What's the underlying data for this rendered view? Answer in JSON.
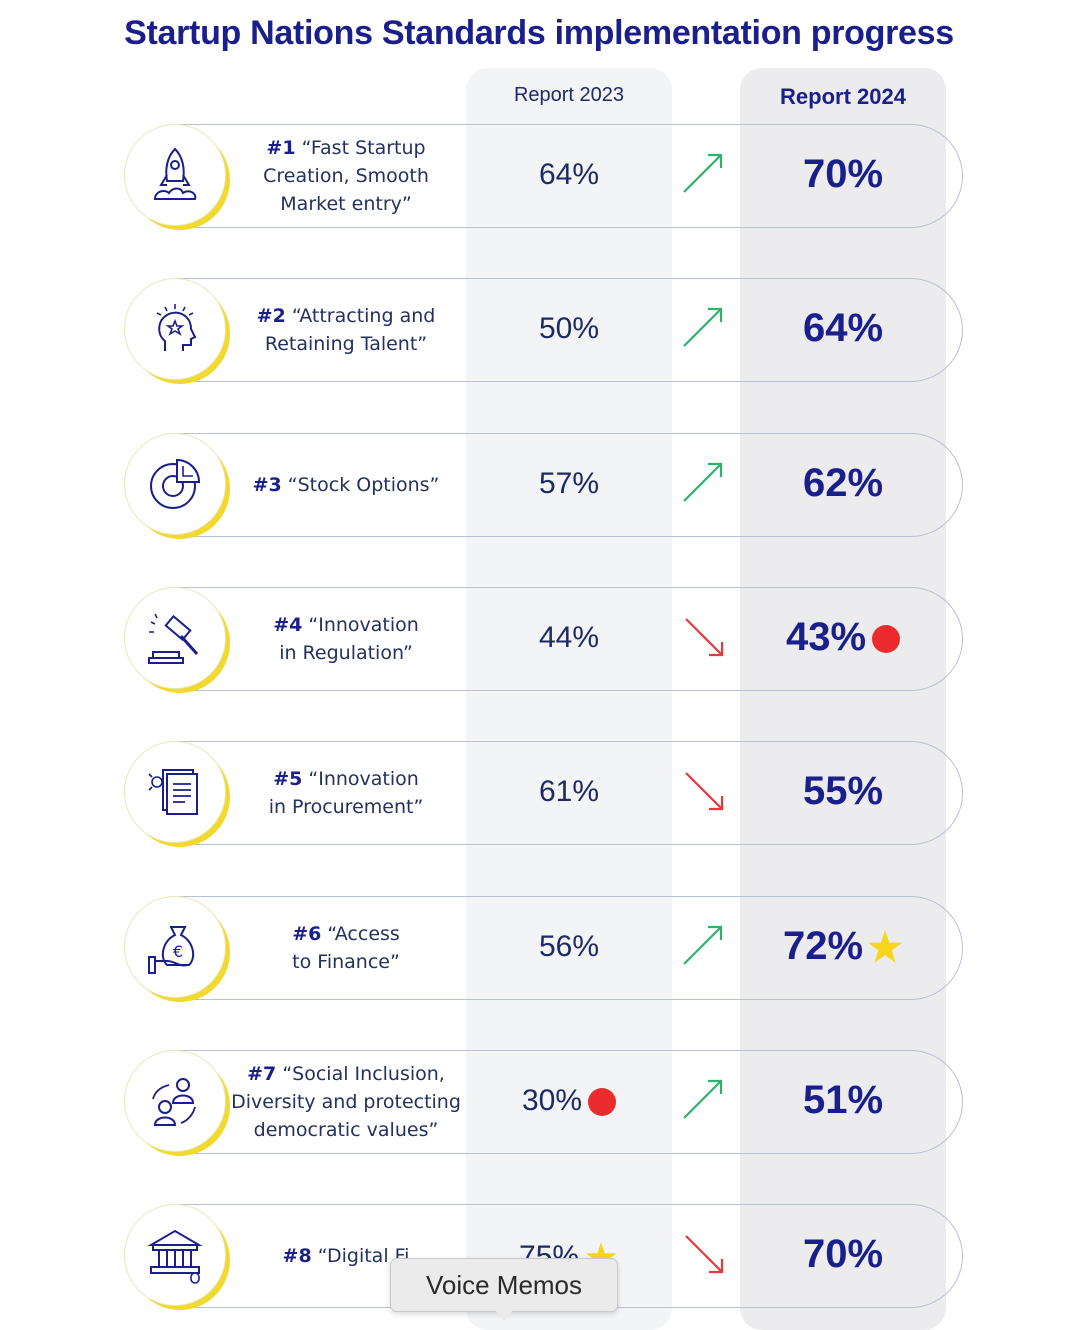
{
  "title": "Startup Nations Standards implementation progress",
  "columns": {
    "y2023": "Report 2023",
    "y2024": "Report 2024"
  },
  "colors": {
    "up": "#2db36b",
    "down": "#e5393b",
    "dot": "#ec2c2c",
    "star": "#f7d51d",
    "brand": "#1a1f8c",
    "circle_accent": "#f2d92e"
  },
  "rows": [
    {
      "num": "#1",
      "line1": "“Fast Startup",
      "line2": "Creation, Smooth",
      "line3": "Market entry”",
      "v2023": "64%",
      "v2024": "70%",
      "trend": "up",
      "icon": "rocket-icon"
    },
    {
      "num": "#2",
      "line1": "“Attracting and",
      "line2": "Retaining Talent”",
      "line3": "",
      "v2023": "50%",
      "v2024": "64%",
      "trend": "up",
      "icon": "head-star-icon"
    },
    {
      "num": "#3",
      "line1": "“Stock Options”",
      "line2": "",
      "line3": "",
      "v2023": "57%",
      "v2024": "62%",
      "trend": "up",
      "icon": "pie-chart-icon"
    },
    {
      "num": "#4",
      "line1": "“Innovation",
      "line2": "in Regulation”",
      "line3": "",
      "v2023": "44%",
      "v2024": "43%",
      "trend": "down",
      "icon": "gavel-icon"
    },
    {
      "num": "#5",
      "line1": "“Innovation",
      "line2": "in Procurement”",
      "line3": "",
      "v2023": "61%",
      "v2024": "55%",
      "trend": "down",
      "icon": "document-icon"
    },
    {
      "num": "#6",
      "line1": "“Access",
      "line2": "to Finance”",
      "line3": "",
      "v2023": "56%",
      "v2024": "72%",
      "trend": "up",
      "icon": "money-bag-icon"
    },
    {
      "num": "#7",
      "line1": "“Social Inclusion,",
      "line2": "Diversity and protecting",
      "line3": "democratic values”",
      "v2023": "30%",
      "v2024": "51%",
      "trend": "up",
      "icon": "people-icon"
    },
    {
      "num": "#8",
      "line1": "“Digital Fi",
      "line2": "",
      "line3": "",
      "v2023": "75%",
      "v2024": "70%",
      "trend": "down",
      "icon": "bank-icon"
    }
  ],
  "tooltip": "Voice Memos",
  "chart_data": {
    "type": "table",
    "title": "Startup Nations Standards implementation progress",
    "columns": [
      "Report 2023",
      "Report 2024"
    ],
    "categories": [
      "#1 “Fast Startup Creation, Smooth Market entry”",
      "#2 “Attracting and Retaining Talent”",
      "#3 “Stock Options”",
      "#4 “Innovation in Regulation”",
      "#5 “Innovation in Procurement”",
      "#6 “Access to Finance”",
      "#7 “Social Inclusion, Diversity and protecting democratic values”",
      "#8 “Digital Fi"
    ],
    "series": [
      {
        "name": "Report 2023",
        "values": [
          64,
          50,
          57,
          44,
          61,
          56,
          30,
          75
        ]
      },
      {
        "name": "Report 2024",
        "values": [
          70,
          64,
          62,
          43,
          55,
          72,
          51,
          70
        ]
      }
    ],
    "markers": [
      {
        "series": "Report 2024",
        "index": 3,
        "marker": "red-dot"
      },
      {
        "series": "Report 2024",
        "index": 5,
        "marker": "yellow-star"
      },
      {
        "series": "Report 2023",
        "index": 6,
        "marker": "red-dot"
      },
      {
        "series": "Report 2023",
        "index": 7,
        "marker": "yellow-star"
      }
    ]
  }
}
